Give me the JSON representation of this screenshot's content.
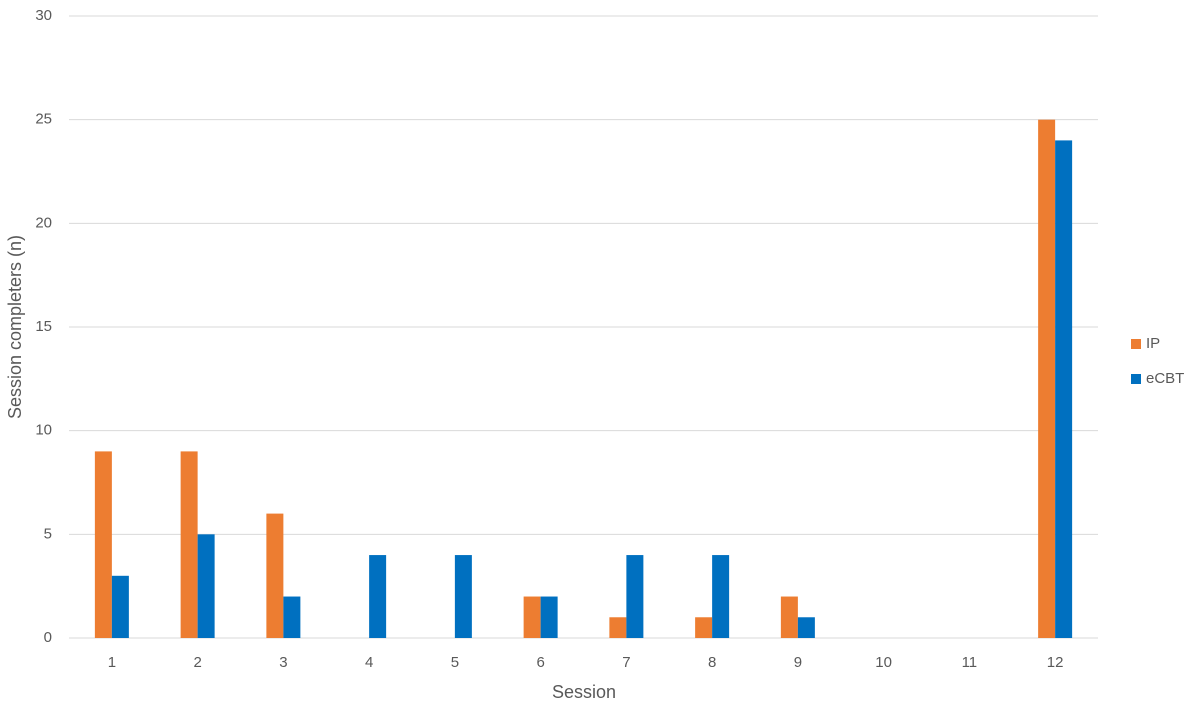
{
  "chart_data": {
    "type": "bar",
    "x_label": "Session",
    "y_label": "Session completers (n)",
    "categories": [
      "1",
      "2",
      "3",
      "4",
      "5",
      "6",
      "7",
      "8",
      "9",
      "10",
      "11",
      "12"
    ],
    "series": [
      {
        "name": "IP",
        "color": "#ed7d31",
        "values": [
          9,
          9,
          6,
          0,
          0,
          2,
          1,
          1,
          2,
          0,
          0,
          25
        ]
      },
      {
        "name": "eCBT",
        "color": "#0070c0",
        "values": [
          3,
          5,
          2,
          4,
          4,
          2,
          4,
          4,
          1,
          0,
          0,
          24
        ]
      }
    ],
    "ylim": [
      0,
      30
    ],
    "yticks": [
      0,
      5,
      10,
      15,
      20,
      25,
      30
    ],
    "grid": true,
    "legend": "right"
  }
}
